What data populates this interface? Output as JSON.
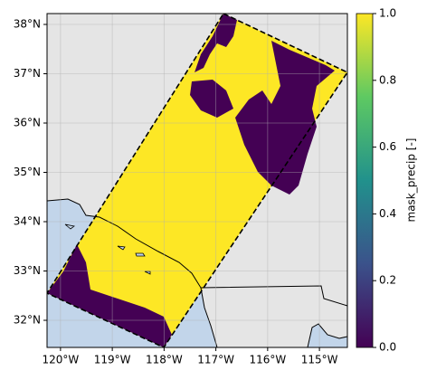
{
  "chart_data": {
    "type": "map",
    "xlim": [
      -120.26,
      -114.46
    ],
    "ylim": [
      31.45,
      38.22
    ],
    "xticks": [
      {
        "value": -120,
        "label": "120°W"
      },
      {
        "value": -119,
        "label": "119°W"
      },
      {
        "value": -118,
        "label": "118°W"
      },
      {
        "value": -117,
        "label": "117°W"
      },
      {
        "value": -116,
        "label": "116°W"
      },
      {
        "value": -115,
        "label": "115°W"
      }
    ],
    "yticks": [
      {
        "value": 32,
        "label": "32°N"
      },
      {
        "value": 33,
        "label": "33°N"
      },
      {
        "value": 34,
        "label": "34°N"
      },
      {
        "value": 35,
        "label": "35°N"
      },
      {
        "value": 36,
        "label": "36°N"
      },
      {
        "value": 37,
        "label": "37°N"
      },
      {
        "value": 38,
        "label": "38°N"
      }
    ],
    "grid": true,
    "colormap": [
      "#440154",
      "#3b528b",
      "#21918c",
      "#5ec962",
      "#fde725"
    ],
    "colorbar": {
      "label": "mask_precip [-]",
      "lim": [
        0,
        1
      ],
      "ticks": [
        {
          "value": 0,
          "label": "0.0"
        },
        0.2,
        0.4,
        0.6,
        0.8,
        {
          "value": 1,
          "label": "1.0"
        }
      ]
    }
  }
}
